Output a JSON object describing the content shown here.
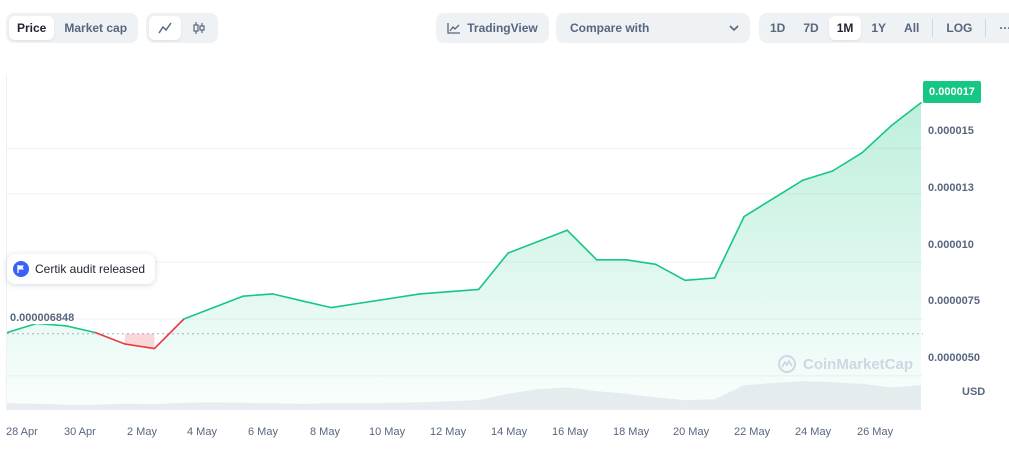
{
  "toolbar": {
    "type_tabs": [
      {
        "label": "Price",
        "active": true
      },
      {
        "label": "Market cap",
        "active": false
      }
    ],
    "chart_types": [
      "line-chart-icon",
      "candlestick-icon"
    ],
    "tradingview_label": "TradingView",
    "compare_label": "Compare with",
    "ranges": [
      {
        "label": "1D",
        "active": false
      },
      {
        "label": "7D",
        "active": false
      },
      {
        "label": "1M",
        "active": true
      },
      {
        "label": "1Y",
        "active": false
      },
      {
        "label": "All",
        "active": false
      }
    ],
    "log_label": "LOG",
    "more_label": "···"
  },
  "colors": {
    "up": "#16c784",
    "down": "#ea3943",
    "grid": "#eff2f5",
    "axis_text": "#58667e"
  },
  "annotations": {
    "event_label": "Certik audit released",
    "baseline_label": "0.000006848",
    "current_price": "0.000017",
    "currency": "USD",
    "watermark": "CoinMarketCap"
  },
  "chart_data": {
    "type": "area",
    "y_ticks": [
      "0.000015",
      "0.000013",
      "0.000010",
      "0.0000075",
      "0.0000050"
    ],
    "x_ticks": [
      "28 Apr",
      "30 Apr",
      "2 May",
      "4 May",
      "6 May",
      "8 May",
      "10 May",
      "12 May",
      "14 May",
      "16 May",
      "18 May",
      "20 May",
      "22 May",
      "24 May",
      "26 May"
    ],
    "baseline": 6.848e-06,
    "ylim": [
      3.5e-06,
      1.8e-05
    ],
    "dates": [
      "27 Apr",
      "28 Apr",
      "29 Apr",
      "30 Apr",
      "1 May",
      "2 May",
      "3 May",
      "4 May",
      "5 May",
      "6 May",
      "7 May",
      "8 May",
      "9 May",
      "10 May",
      "11 May",
      "12 May",
      "13 May",
      "14 May",
      "15 May",
      "16 May",
      "17 May",
      "18 May",
      "19 May",
      "20 May",
      "21 May",
      "22 May",
      "23 May",
      "24 May",
      "25 May",
      "26 May",
      "27 May",
      "28 May"
    ],
    "values": [
      6.9e-06,
      7.3e-06,
      7.2e-06,
      6.9e-06,
      6.4e-06,
      6.2e-06,
      7.5e-06,
      8e-06,
      8.5e-06,
      8.6e-06,
      8.3e-06,
      8e-06,
      8.2e-06,
      8.4e-06,
      8.6e-06,
      8.7e-06,
      8.8e-06,
      1.04e-05,
      1.09e-05,
      1.14e-05,
      1.01e-05,
      1.01e-05,
      9.9e-06,
      9.2e-06,
      9.3e-06,
      1.2e-05,
      1.28e-05,
      1.36e-05,
      1.4e-05,
      1.48e-05,
      1.6e-05,
      1.7e-05
    ],
    "volume": [
      0.15,
      0.14,
      0.12,
      0.12,
      0.14,
      0.13,
      0.16,
      0.17,
      0.16,
      0.15,
      0.14,
      0.15,
      0.15,
      0.16,
      0.17,
      0.19,
      0.22,
      0.36,
      0.46,
      0.5,
      0.42,
      0.36,
      0.28,
      0.22,
      0.24,
      0.55,
      0.6,
      0.64,
      0.62,
      0.58,
      0.5,
      0.55
    ]
  }
}
